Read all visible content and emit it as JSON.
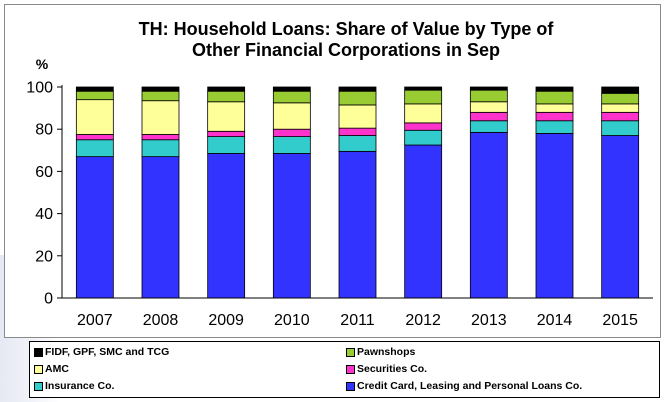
{
  "chart_data": {
    "type": "bar",
    "stacked": true,
    "title_lines": [
      "TH: Household Loans: Share of Value by Type of",
      "Other Financial Corporations in Sep"
    ],
    "ylabel": "%",
    "xlabel": "",
    "ylim": [
      0,
      100
    ],
    "yticks": [
      "0",
      "20",
      "40",
      "60",
      "80",
      "100"
    ],
    "grid": false,
    "legend_position": "bottom",
    "categories": [
      "2007",
      "2008",
      "2009",
      "2010",
      "2011",
      "2012",
      "2013",
      "2014",
      "2015"
    ],
    "series": [
      {
        "name": "Credit Card, Leasing and Personal Loans Co.",
        "color": "#3333ff",
        "values": [
          67,
          67,
          68.5,
          68.5,
          69.5,
          72.5,
          78.5,
          78,
          77
        ]
      },
      {
        "name": "Insurance Co.",
        "color": "#33cccc",
        "values": [
          8,
          8,
          8,
          8,
          7.5,
          7,
          5.5,
          6,
          7
        ]
      },
      {
        "name": "Securities Co.",
        "color": "#ff33cc",
        "values": [
          2.5,
          2.5,
          2.5,
          3.5,
          3.5,
          3.5,
          4,
          4,
          4
        ]
      },
      {
        "name": "AMC",
        "color": "#ffff99",
        "values": [
          16.5,
          16,
          14,
          12.5,
          11,
          9,
          5,
          4,
          4
        ]
      },
      {
        "name": "Pawnshops",
        "color": "#99cc33",
        "values": [
          4,
          4.5,
          5,
          5.5,
          6.5,
          6.5,
          5.5,
          6,
          5
        ]
      },
      {
        "name": "FIDF, GPF, SMC and TCG",
        "color": "#000000",
        "values": [
          2,
          2,
          2,
          2,
          2,
          1.5,
          1.5,
          2,
          3
        ]
      }
    ]
  },
  "legend": {
    "fidf": "FIDF, GPF, SMC and TCG",
    "pawnshops": "Pawnshops",
    "amc": "AMC",
    "securities": "Securities Co.",
    "insurance": "Insurance Co.",
    "credit": "Credit Card, Leasing and Personal Loans Co."
  },
  "colors": {
    "fidf": "#000000",
    "pawnshops": "#99cc33",
    "amc": "#ffff99",
    "securities": "#ff33cc",
    "insurance": "#33cccc",
    "credit": "#3333ff"
  }
}
